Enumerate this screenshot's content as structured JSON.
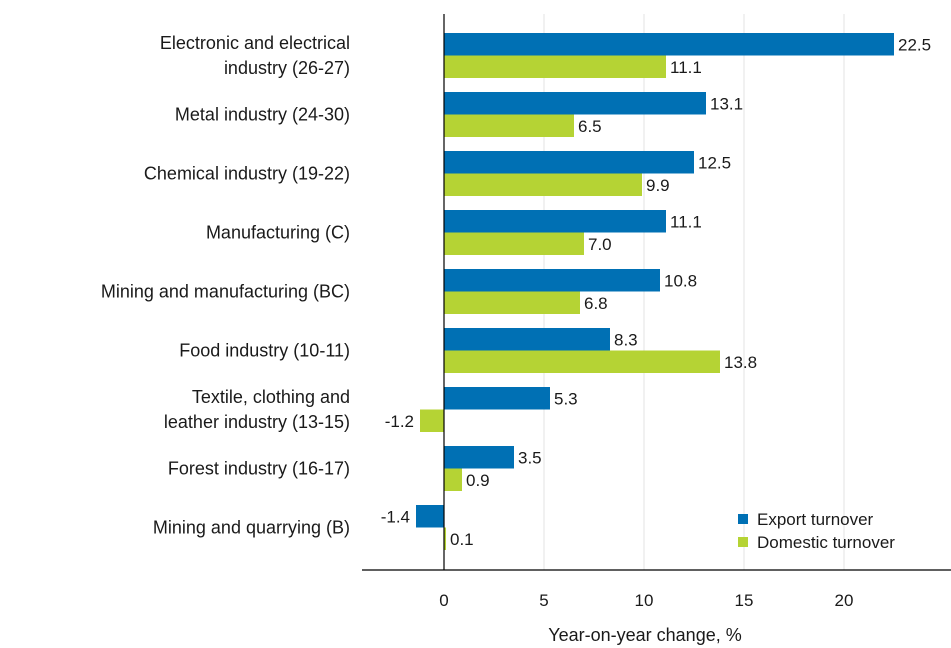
{
  "chart_data": {
    "type": "bar",
    "orientation": "horizontal",
    "categories": [
      [
        "Electronic and electrical",
        "industry (26-27)"
      ],
      [
        "Metal industry (24-30)"
      ],
      [
        "Chemical industry (19-22)"
      ],
      [
        "Manufacturing (C)"
      ],
      [
        "Mining and manufacturing (BC)"
      ],
      [
        "Food industry (10-11)"
      ],
      [
        "Textile, clothing and",
        "leather industry (13-15)"
      ],
      [
        "Forest industry (16-17)"
      ],
      [
        "Mining and quarrying (B)"
      ]
    ],
    "series": [
      {
        "name": "Export turnover",
        "color": "#0070b4",
        "values": [
          22.5,
          13.1,
          12.5,
          11.1,
          10.8,
          8.3,
          5.3,
          3.5,
          -1.4
        ]
      },
      {
        "name": "Domestic turnover",
        "color": "#b5d334",
        "values": [
          11.1,
          6.5,
          9.9,
          7.0,
          6.8,
          13.8,
          -1.2,
          0.9,
          0.1
        ]
      }
    ],
    "xlabel": "Year-on-year change, %",
    "xlim": [
      -4,
      25
    ],
    "xticks": [
      0,
      5,
      10,
      15,
      20
    ],
    "grid": "vertical",
    "legend": "bottom-right"
  }
}
